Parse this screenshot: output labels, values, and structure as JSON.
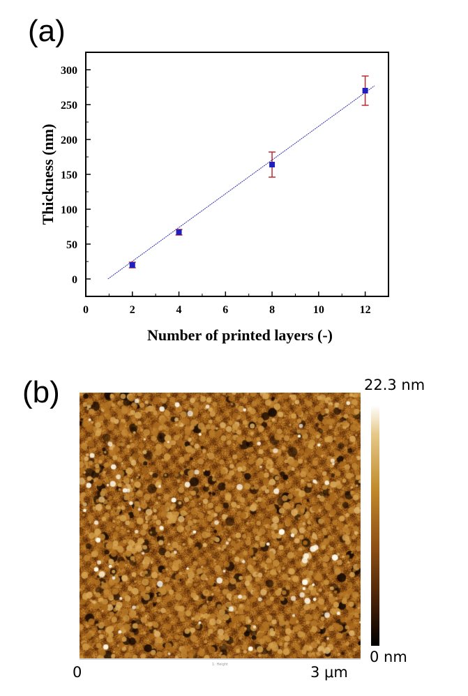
{
  "panel_a": {
    "label": "(a)"
  },
  "panel_b": {
    "label": "(b)",
    "colorbar_max": "22.3 nm",
    "colorbar_min": "0 nm",
    "x_start": "0",
    "x_end": "3 μm",
    "channel_label": "1: Height",
    "colors": {
      "high": "#ffffff",
      "mid": "#c08a2c",
      "low": "#000000"
    }
  },
  "chart_data": {
    "type": "scatter",
    "xlabel": "Number of printed layers (-)",
    "ylabel": "Thickness (nm)",
    "xlim": [
      0,
      13
    ],
    "ylim": [
      -25,
      325
    ],
    "xticks": [
      0,
      2,
      4,
      6,
      8,
      10,
      12
    ],
    "yticks": [
      0,
      50,
      100,
      150,
      200,
      250,
      300
    ],
    "legend": "none",
    "grid": false,
    "series": [
      {
        "points": [
          {
            "x": 2,
            "y": 20,
            "err": 4
          },
          {
            "x": 4,
            "y": 67,
            "err": 4
          },
          {
            "x": 8,
            "y": 164,
            "err": 18
          },
          {
            "x": 12,
            "y": 270,
            "err": 21
          }
        ],
        "marker_color": "#1f1fbf",
        "error_color": "#c0282d"
      }
    ],
    "fit_line": {
      "x": [
        0.95,
        12.4
      ],
      "y": [
        0,
        277
      ],
      "color": "#2b2bb0"
    }
  }
}
